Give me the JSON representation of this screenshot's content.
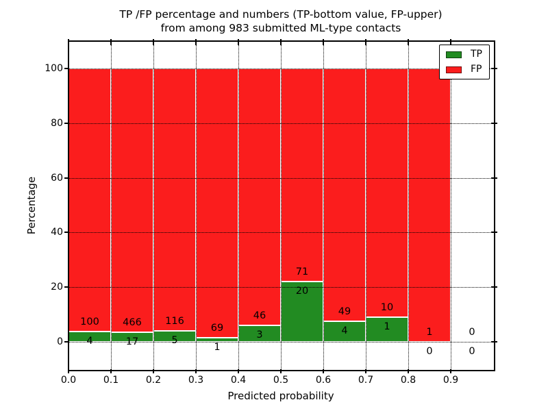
{
  "figure": {
    "kind": "matplotlib-style stacked bar chart"
  },
  "chart_data": {
    "type": "bar",
    "stacked": true,
    "title_lines": [
      "TP /FP percentage and numbers (TP-bottom value, FP-upper)",
      "from among 983 submitted ML-type contacts"
    ],
    "xlabel": "Predicted probability",
    "ylabel": "Percentage",
    "total_contacts": 983,
    "xlim": [
      0.0,
      1.0
    ],
    "ylim": [
      -10,
      110
    ],
    "xticks": [
      0.0,
      0.1,
      0.2,
      0.3,
      0.4,
      0.5,
      0.6,
      0.7,
      0.8,
      0.9
    ],
    "xtick_labels": [
      "0.0",
      "0.1",
      "0.2",
      "0.3",
      "0.4",
      "0.5",
      "0.6",
      "0.7",
      "0.8",
      "0.9"
    ],
    "yticks": [
      0,
      20,
      40,
      60,
      80,
      100
    ],
    "ytick_labels": [
      "0",
      "20",
      "40",
      "60",
      "80",
      "100"
    ],
    "grid": true,
    "grid_style": "dotted",
    "bin_width": 0.1,
    "bins_start": [
      0.0,
      0.1,
      0.2,
      0.3,
      0.4,
      0.5,
      0.6,
      0.7,
      0.8,
      0.9
    ],
    "series": [
      {
        "name": "TP",
        "color": "#228b22",
        "counts": [
          4,
          17,
          5,
          1,
          3,
          20,
          4,
          1,
          0,
          0
        ]
      },
      {
        "name": "FP",
        "color": "#fb1d1d",
        "counts": [
          100,
          466,
          116,
          69,
          46,
          71,
          49,
          10,
          1,
          0
        ]
      }
    ],
    "tp_percent_per_bin": [
      3.85,
      3.52,
      4.13,
      1.43,
      6.12,
      21.98,
      7.55,
      9.09,
      0.0,
      null
    ],
    "bar_edge_color": "#ffffff",
    "annotation_note": "FP count printed above green segment top, TP count printed below it",
    "legend": {
      "position": "upper right",
      "entries": [
        {
          "label": "TP",
          "color": "#228b22"
        },
        {
          "label": "FP",
          "color": "#fb1d1d"
        }
      ]
    }
  }
}
